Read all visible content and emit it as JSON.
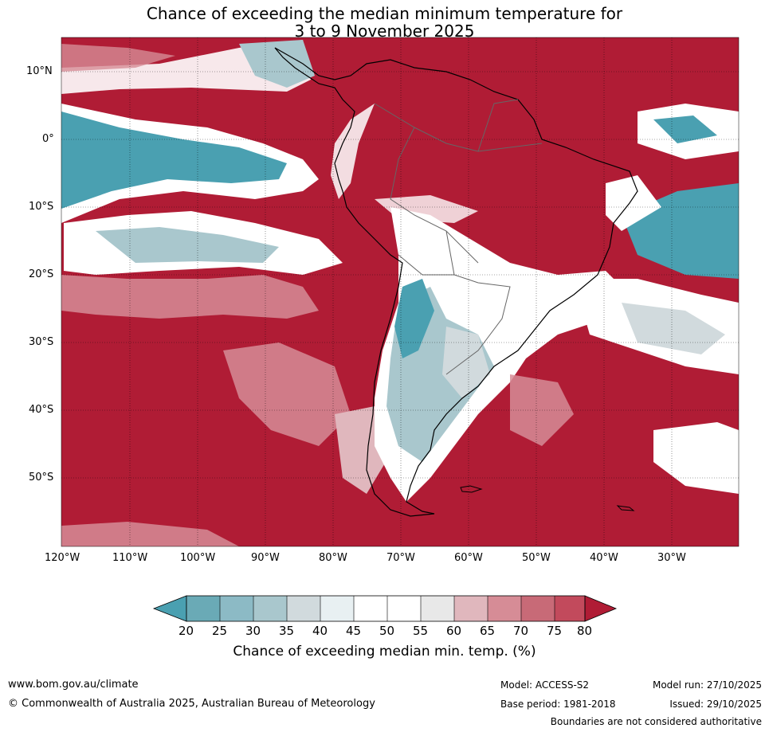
{
  "title": {
    "line1": "Chance of exceeding the median minimum temperature for",
    "line2": "3 to 9 November 2025"
  },
  "map": {
    "lat_labels": [
      "10°N",
      "0°",
      "10°S",
      "20°S",
      "30°S",
      "40°S",
      "50°S"
    ],
    "lon_labels": [
      "120°W",
      "110°W",
      "100°W",
      "90°W",
      "80°W",
      "70°W",
      "60°W",
      "50°W",
      "40°W",
      "30°W"
    ],
    "colors": {
      "very_high": "#b01c35",
      "high": "#c24a5c",
      "mid_high": "#d68c96",
      "neutral": "#ffffff",
      "low": "#a9c7cd",
      "very_low": "#4aa0b1"
    }
  },
  "legend": {
    "ticks": [
      "20",
      "25",
      "30",
      "35",
      "40",
      "45",
      "50",
      "55",
      "60",
      "65",
      "70",
      "75",
      "80"
    ],
    "colors": [
      "#4aa0b1",
      "#6aaab6",
      "#8cbac5",
      "#a9c7cd",
      "#d1dadd",
      "#e8f0f2",
      "#ffffff",
      "#ffffff",
      "#e8e8e8",
      "#e0b7bd",
      "#d68c96",
      "#c86a77",
      "#c24a5c",
      "#b01c35"
    ],
    "title": "Chance of exceeding median min. temp. (%)"
  },
  "footer": {
    "website": "www.bom.gov.au/climate",
    "copyright": "© Commonwealth of Australia 2025, Australian Bureau of Meteorology",
    "model": "Model: ACCESS-S2",
    "base_period": "Base period: 1981-2018",
    "model_run": "Model run: 27/10/2025",
    "issued": "Issued: 29/10/2025",
    "disclaimer": "Boundaries are not considered authoritative"
  }
}
